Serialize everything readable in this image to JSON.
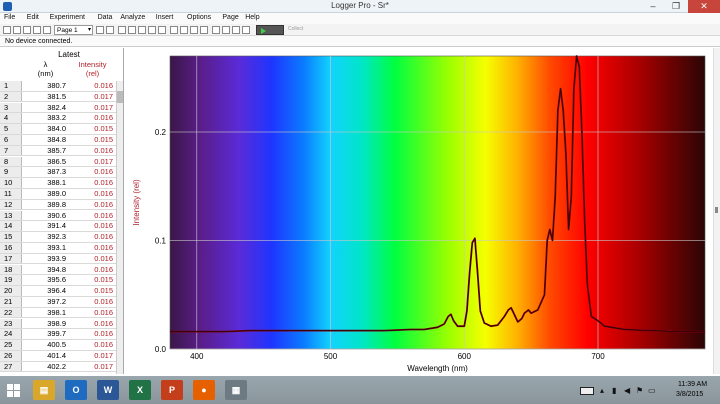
{
  "window": {
    "title": "Logger Pro - Sr*",
    "minimize": "–",
    "maximize": "❐",
    "close": "✕"
  },
  "menu": [
    "File",
    "Edit",
    "Experiment",
    "Data",
    "Analyze",
    "Insert",
    "Options",
    "Page",
    "Help"
  ],
  "toolbar": {
    "page_select": "Page 1",
    "collect_label": "Collect"
  },
  "status": {
    "device": "No device connected."
  },
  "table": {
    "dataset": "Latest",
    "col1": {
      "name": "λ",
      "unit": "(nm)"
    },
    "col2": {
      "name": "Intensity",
      "unit": "(rel)"
    },
    "rows": [
      [
        "1",
        "380.7",
        "0.016"
      ],
      [
        "2",
        "381.5",
        "0.017"
      ],
      [
        "3",
        "382.4",
        "0.017"
      ],
      [
        "4",
        "383.2",
        "0.016"
      ],
      [
        "5",
        "384.0",
        "0.015"
      ],
      [
        "6",
        "384.8",
        "0.015"
      ],
      [
        "7",
        "385.7",
        "0.016"
      ],
      [
        "8",
        "386.5",
        "0.017"
      ],
      [
        "9",
        "387.3",
        "0.016"
      ],
      [
        "10",
        "388.1",
        "0.016"
      ],
      [
        "11",
        "389.0",
        "0.016"
      ],
      [
        "12",
        "389.8",
        "0.016"
      ],
      [
        "13",
        "390.6",
        "0.016"
      ],
      [
        "14",
        "391.4",
        "0.016"
      ],
      [
        "15",
        "392.3",
        "0.016"
      ],
      [
        "16",
        "393.1",
        "0.016"
      ],
      [
        "17",
        "393.9",
        "0.016"
      ],
      [
        "18",
        "394.8",
        "0.016"
      ],
      [
        "19",
        "395.6",
        "0.015"
      ],
      [
        "20",
        "396.4",
        "0.015"
      ],
      [
        "21",
        "397.2",
        "0.016"
      ],
      [
        "22",
        "398.1",
        "0.016"
      ],
      [
        "23",
        "398.9",
        "0.016"
      ],
      [
        "24",
        "399.7",
        "0.016"
      ],
      [
        "25",
        "400.5",
        "0.016"
      ],
      [
        "26",
        "401.4",
        "0.017"
      ],
      [
        "27",
        "402.2",
        "0.017"
      ]
    ]
  },
  "chart_data": {
    "type": "line",
    "title": "",
    "xlabel": "Wavelength (nm)",
    "ylabel": "Intensity (rel)",
    "xlim": [
      380,
      780
    ],
    "ylim": [
      0,
      0.27
    ],
    "xticks": [
      "400",
      "500",
      "600",
      "700"
    ],
    "yticks": [
      "0.0",
      "0.1",
      "0.2"
    ],
    "grid": true,
    "background": "visible spectrum gradient",
    "series": [
      {
        "x": [
          380,
          400,
          420,
          440,
          460,
          480,
          500,
          520,
          540,
          560,
          570,
          580,
          585,
          588,
          590,
          592,
          595,
          600,
          602,
          604,
          606,
          608,
          610,
          612,
          615,
          620,
          625,
          630,
          633,
          635,
          637,
          640,
          643,
          645,
          648,
          650,
          655,
          660,
          662,
          664,
          666,
          668,
          670,
          672,
          674,
          676,
          678,
          680,
          682,
          684,
          686,
          688,
          690,
          692,
          695,
          700,
          705,
          710,
          720,
          740,
          760,
          780
        ],
        "y": [
          0.016,
          0.016,
          0.016,
          0.017,
          0.017,
          0.017,
          0.017,
          0.017,
          0.017,
          0.018,
          0.018,
          0.02,
          0.023,
          0.03,
          0.032,
          0.026,
          0.021,
          0.021,
          0.035,
          0.07,
          0.098,
          0.102,
          0.07,
          0.035,
          0.024,
          0.021,
          0.022,
          0.03,
          0.036,
          0.038,
          0.033,
          0.025,
          0.028,
          0.033,
          0.036,
          0.033,
          0.036,
          0.05,
          0.1,
          0.11,
          0.1,
          0.14,
          0.22,
          0.24,
          0.22,
          0.18,
          0.11,
          0.14,
          0.24,
          0.27,
          0.26,
          0.2,
          0.12,
          0.06,
          0.03,
          0.026,
          0.021,
          0.02,
          0.018,
          0.017,
          0.016,
          0.016
        ]
      }
    ]
  },
  "taskbar": {
    "apps": [
      {
        "name": "file-explorer",
        "label": "▤"
      },
      {
        "name": "outlook",
        "label": "O"
      },
      {
        "name": "word",
        "label": "W"
      },
      {
        "name": "excel",
        "label": "X"
      },
      {
        "name": "powerpoint",
        "label": "P"
      },
      {
        "name": "firefox",
        "label": "●"
      },
      {
        "name": "logger-pro",
        "label": "▦"
      }
    ],
    "time": "11:39 AM",
    "date": "3/8/2015"
  }
}
